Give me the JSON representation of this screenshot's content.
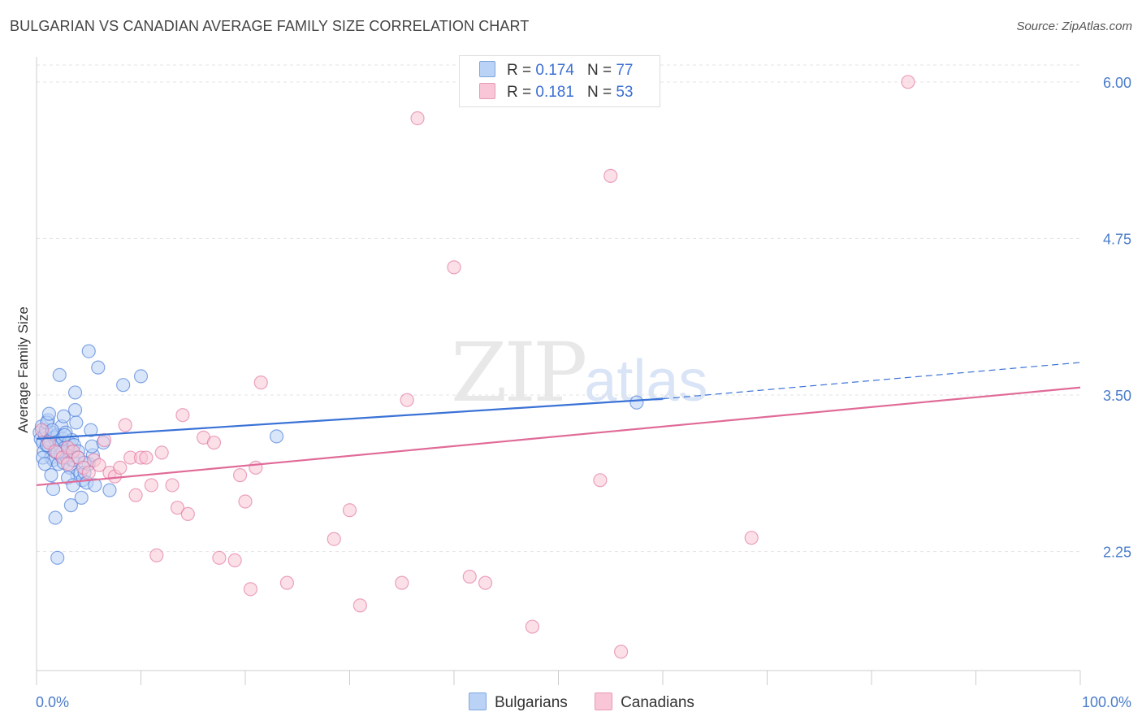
{
  "title": "BULGARIAN VS CANADIAN AVERAGE FAMILY SIZE CORRELATION CHART",
  "source": "Source: ZipAtlas.com",
  "watermark": {
    "zip": "ZIP",
    "atlas": "atlas"
  },
  "legend": {
    "r_label": "R =",
    "n_label": "N =",
    "entries": [
      {
        "r": "0.174",
        "n": "77",
        "color": "#4a7cc9",
        "fill": "#b9d2f5"
      },
      {
        "r": "0.181",
        "n": "53",
        "color": "#e07aa0",
        "fill": "#f8c6d6"
      }
    ]
  },
  "bottom_legend": [
    {
      "label": "Bulgarians",
      "fill": "#b9d2f5",
      "stroke": "#7ea6e0"
    },
    {
      "label": "Canadians",
      "fill": "#f8c6d6",
      "stroke": "#e79ab5"
    }
  ],
  "chart_data": {
    "type": "scatter",
    "title": "BULGARIAN VS CANADIAN AVERAGE FAMILY SIZE CORRELATION CHART",
    "xlabel": "",
    "ylabel": "Average Family Size",
    "xlim": [
      0,
      100
    ],
    "ylim": [
      1.3,
      6.2
    ],
    "x_tick_labels": [
      "0.0%",
      "100.0%"
    ],
    "y_ticks": [
      2.25,
      3.5,
      4.75,
      6.0
    ],
    "y_tick_labels": [
      "2.25",
      "3.50",
      "4.75",
      "6.00"
    ],
    "grid": true,
    "series": [
      {
        "name": "Bulgarians",
        "color": "#3a72d6",
        "fill": "#b9d2f5",
        "trend": {
          "x0": 0,
          "y0": 3.15,
          "x1": 60,
          "y1": 3.47,
          "dash_to_x": 100,
          "dash_to_y": 3.76
        },
        "points": [
          [
            0.3,
            3.2
          ],
          [
            0.4,
            3.15
          ],
          [
            0.5,
            3.25
          ],
          [
            0.6,
            3.12
          ],
          [
            0.7,
            3.05
          ],
          [
            0.8,
            3.18
          ],
          [
            0.9,
            3.22
          ],
          [
            1.0,
            3.1
          ],
          [
            1.1,
            3.3
          ],
          [
            1.2,
            3.08
          ],
          [
            1.3,
            3.14
          ],
          [
            1.4,
            3.0
          ],
          [
            1.5,
            3.2
          ],
          [
            1.6,
            2.98
          ],
          [
            1.7,
            3.16
          ],
          [
            1.8,
            3.05
          ],
          [
            1.9,
            3.12
          ],
          [
            2.0,
            3.18
          ],
          [
            2.1,
            2.95
          ],
          [
            2.2,
            3.1
          ],
          [
            2.3,
            3.02
          ],
          [
            2.4,
            3.25
          ],
          [
            2.5,
            3.15
          ],
          [
            2.6,
            2.96
          ],
          [
            2.7,
            3.08
          ],
          [
            2.8,
            3.2
          ],
          [
            2.9,
            3.0
          ],
          [
            3.0,
            3.06
          ],
          [
            3.1,
            3.12
          ],
          [
            3.2,
            2.92
          ],
          [
            3.3,
            3.04
          ],
          [
            3.4,
            3.14
          ],
          [
            3.5,
            2.98
          ],
          [
            3.6,
            3.1
          ],
          [
            3.7,
            3.38
          ],
          [
            3.8,
            3.28
          ],
          [
            3.9,
            2.86
          ],
          [
            4.0,
            3.05
          ],
          [
            4.2,
            2.88
          ],
          [
            4.4,
            2.82
          ],
          [
            4.6,
            2.88
          ],
          [
            4.8,
            2.8
          ],
          [
            5.0,
            2.95
          ],
          [
            5.2,
            3.22
          ],
          [
            5.4,
            3.02
          ],
          [
            0.6,
            3.0
          ],
          [
            0.8,
            2.95
          ],
          [
            1.0,
            3.28
          ],
          [
            1.2,
            3.35
          ],
          [
            1.4,
            2.86
          ],
          [
            1.6,
            2.75
          ],
          [
            1.8,
            2.52
          ],
          [
            2.0,
            2.2
          ],
          [
            2.2,
            3.66
          ],
          [
            2.5,
            3.05
          ],
          [
            2.7,
            3.18
          ],
          [
            3.0,
            2.84
          ],
          [
            3.3,
            2.62
          ],
          [
            3.5,
            2.78
          ],
          [
            3.7,
            3.52
          ],
          [
            4.0,
            3.0
          ],
          [
            4.3,
            2.68
          ],
          [
            4.6,
            2.96
          ],
          [
            5.0,
            3.85
          ],
          [
            5.3,
            3.09
          ],
          [
            5.6,
            2.78
          ],
          [
            5.9,
            3.72
          ],
          [
            6.4,
            3.12
          ],
          [
            7.0,
            2.74
          ],
          [
            8.3,
            3.58
          ],
          [
            10.0,
            3.65
          ],
          [
            23.0,
            3.17
          ],
          [
            57.5,
            3.44
          ],
          [
            1.0,
            3.1
          ],
          [
            1.5,
            3.22
          ],
          [
            2.0,
            3.04
          ],
          [
            2.6,
            3.33
          ]
        ]
      },
      {
        "name": "Canadians",
        "color": "#e06a98",
        "fill": "#f8c6d6",
        "trend": {
          "x0": 0,
          "y0": 2.78,
          "x1": 100,
          "y1": 3.56
        },
        "points": [
          [
            0.5,
            3.22
          ],
          [
            1.2,
            3.12
          ],
          [
            1.8,
            3.05
          ],
          [
            2.5,
            3.0
          ],
          [
            3.0,
            3.08
          ],
          [
            3.5,
            3.05
          ],
          [
            4.0,
            3.0
          ],
          [
            4.5,
            2.92
          ],
          [
            5.0,
            2.88
          ],
          [
            5.5,
            2.98
          ],
          [
            6.0,
            2.94
          ],
          [
            6.5,
            3.14
          ],
          [
            7.0,
            2.88
          ],
          [
            7.5,
            2.85
          ],
          [
            8.0,
            2.92
          ],
          [
            8.5,
            3.26
          ],
          [
            9.0,
            3.0
          ],
          [
            9.5,
            2.7
          ],
          [
            10.0,
            3.0
          ],
          [
            10.5,
            3.0
          ],
          [
            11.0,
            2.78
          ],
          [
            11.5,
            2.22
          ],
          [
            12.0,
            3.04
          ],
          [
            13.0,
            2.78
          ],
          [
            13.5,
            2.6
          ],
          [
            14.0,
            3.34
          ],
          [
            14.5,
            2.55
          ],
          [
            16.0,
            3.16
          ],
          [
            17.0,
            3.12
          ],
          [
            17.5,
            2.2
          ],
          [
            19.0,
            2.18
          ],
          [
            19.5,
            2.86
          ],
          [
            20.0,
            2.65
          ],
          [
            20.5,
            1.95
          ],
          [
            21.0,
            2.92
          ],
          [
            21.5,
            3.6
          ],
          [
            24.0,
            2.0
          ],
          [
            28.5,
            2.35
          ],
          [
            30.0,
            2.58
          ],
          [
            31.0,
            1.82
          ],
          [
            35.0,
            2.0
          ],
          [
            35.5,
            3.46
          ],
          [
            36.5,
            5.71
          ],
          [
            40.0,
            4.52
          ],
          [
            41.5,
            2.05
          ],
          [
            43.0,
            2.0
          ],
          [
            47.5,
            1.65
          ],
          [
            54.0,
            2.82
          ],
          [
            55.0,
            5.25
          ],
          [
            56.0,
            1.45
          ],
          [
            68.5,
            2.36
          ],
          [
            83.5,
            6.0
          ],
          [
            3.0,
            2.95
          ]
        ]
      }
    ]
  }
}
